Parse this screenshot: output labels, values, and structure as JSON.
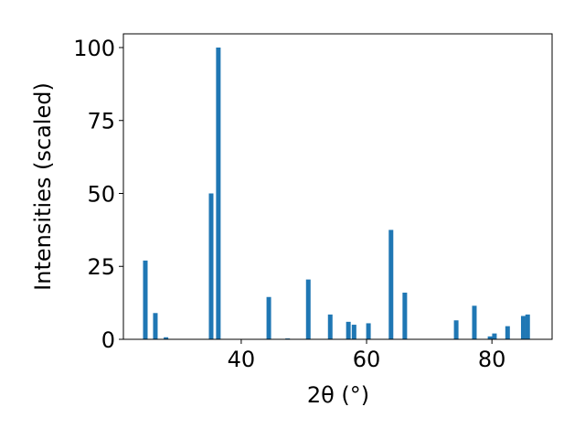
{
  "chart_data": {
    "type": "bar",
    "x_label": "2θ (°)",
    "y_label": "Intensities (scaled)",
    "x": [
      24.7,
      26.3,
      28.0,
      35.2,
      36.35,
      44.4,
      47.4,
      50.7,
      54.2,
      57.1,
      58.0,
      60.3,
      63.9,
      66.1,
      74.3,
      77.2,
      79.7,
      80.4,
      82.5,
      85.0,
      85.7
    ],
    "values": [
      27,
      9,
      0.7,
      50,
      100,
      14.5,
      0.3,
      20.5,
      8.5,
      6,
      5,
      5.5,
      37.5,
      16,
      6.5,
      11.5,
      1,
      2,
      4.5,
      8,
      8.5
    ],
    "color": "#1f77b4",
    "xlim": [
      21.2,
      89.6
    ],
    "xticks": [
      40,
      60,
      80
    ],
    "ylim": [
      0,
      104.7
    ],
    "yticks": [
      0,
      25,
      50,
      75,
      100
    ],
    "grid": false
  }
}
